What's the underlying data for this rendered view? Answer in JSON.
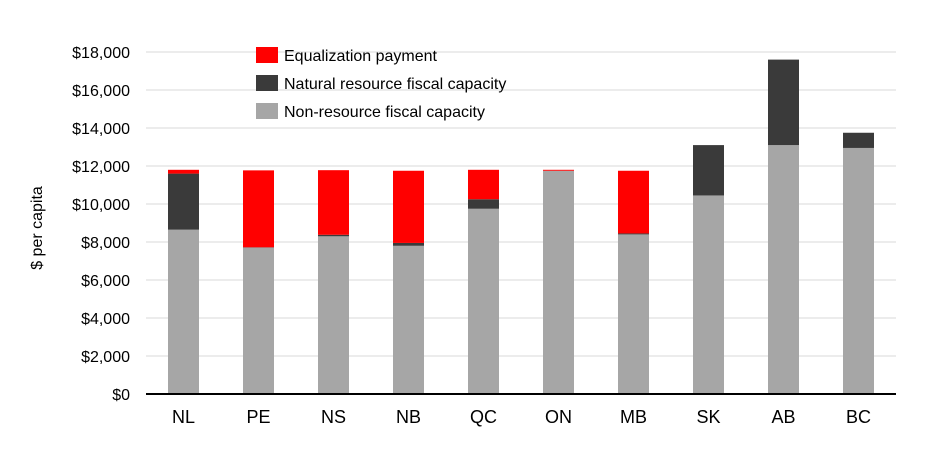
{
  "chart_data": {
    "type": "bar",
    "stacked": true,
    "title": "",
    "xlabel": "",
    "ylabel": "$ per capita",
    "ylim": [
      0,
      18000
    ],
    "yticks": [
      0,
      2000,
      4000,
      6000,
      8000,
      10000,
      12000,
      14000,
      16000,
      18000
    ],
    "ytick_labels": [
      "$0",
      "$2,000",
      "$4,000",
      "$6,000",
      "$8,000",
      "$10,000",
      "$12,000",
      "$14,000",
      "$16,000",
      "$18,000"
    ],
    "grid": true,
    "legend_position": "top-left",
    "categories": [
      "NL",
      "PE",
      "NS",
      "NB",
      "QC",
      "ON",
      "MB",
      "SK",
      "AB",
      "BC"
    ],
    "series": [
      {
        "name": "Non-resource fiscal capacity",
        "color": "#a6a6a6",
        "values": [
          8650,
          7700,
          8300,
          7800,
          9750,
          11750,
          8400,
          10450,
          13100,
          12950
        ]
      },
      {
        "name": "Natural resource fiscal capacity",
        "color": "#3a3a3a",
        "values": [
          2950,
          20,
          80,
          150,
          500,
          0,
          50,
          2650,
          4500,
          800
        ]
      },
      {
        "name": "Equalization payment",
        "color": "#ff0000",
        "values": [
          200,
          4050,
          3400,
          3800,
          1550,
          50,
          3300,
          0,
          0,
          0
        ]
      }
    ],
    "legend_order": [
      "Equalization payment",
      "Natural resource fiscal capacity",
      "Non-resource fiscal capacity"
    ]
  }
}
